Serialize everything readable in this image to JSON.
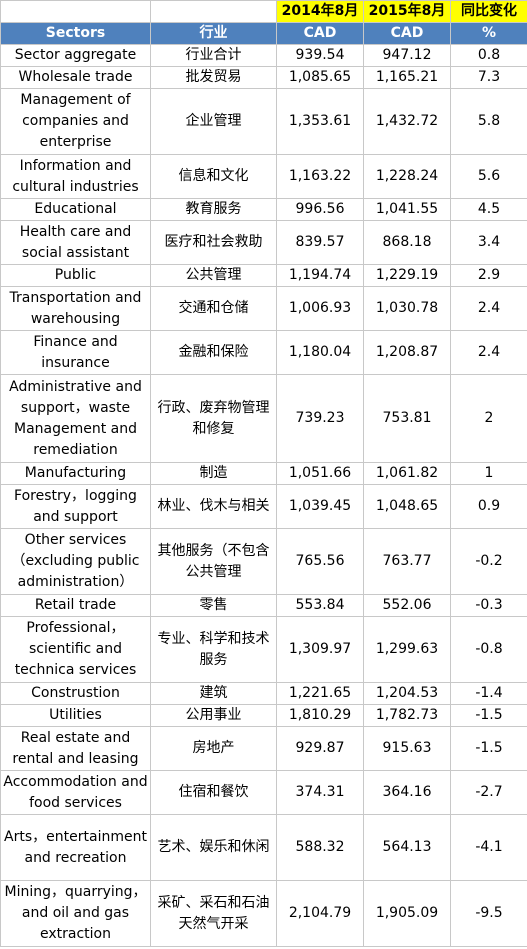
{
  "top_row": {
    "year1": "2014年8月",
    "year2": "2015年8月",
    "change": "同比变化"
  },
  "header": {
    "sectors": "Sectors",
    "industry_cn": "行业",
    "unit1": "CAD",
    "unit2": "CAD",
    "unit_pct": "%"
  },
  "rows": [
    {
      "en": "Sector aggregate",
      "cn": "行业合计",
      "v2014": "939.54",
      "v2015": "947.12",
      "pct": "0.8"
    },
    {
      "en": "Wholesale trade",
      "cn": "批发贸易",
      "v2014": "1,085.65",
      "v2015": "1,165.21",
      "pct": "7.3"
    },
    {
      "en": "Management of companies and enterprise",
      "cn": "企业管理",
      "v2014": "1,353.61",
      "v2015": "1,432.72",
      "pct": "5.8"
    },
    {
      "en": "Information and cultural industries",
      "cn": "信息和文化",
      "v2014": "1,163.22",
      "v2015": "1,228.24",
      "pct": "5.6"
    },
    {
      "en": "Educational",
      "cn": "教育服务",
      "v2014": "996.56",
      "v2015": "1,041.55",
      "pct": "4.5"
    },
    {
      "en": "Health care and social assistant",
      "cn": "医疗和社会救助",
      "v2014": "839.57",
      "v2015": "868.18",
      "pct": "3.4"
    },
    {
      "en": "Public",
      "cn": "公共管理",
      "v2014": "1,194.74",
      "v2015": "1,229.19",
      "pct": "2.9"
    },
    {
      "en": "Transportation and warehousing",
      "cn": "交通和仓储",
      "v2014": "1,006.93",
      "v2015": "1,030.78",
      "pct": "2.4"
    },
    {
      "en": "Finance and insurance",
      "cn": "金融和保险",
      "v2014": "1,180.04",
      "v2015": "1,208.87",
      "pct": "2.4"
    },
    {
      "en": "Administrative and support，waste Management and remediation",
      "cn": "行政、废弃物管理和修复",
      "v2014": "739.23",
      "v2015": "753.81",
      "pct": "2"
    },
    {
      "en": "Manufacturing",
      "cn": "制造",
      "v2014": "1,051.66",
      "v2015": "1,061.82",
      "pct": "1"
    },
    {
      "en": "Forestry，logging and support",
      "cn": "林业、伐木与相关",
      "v2014": "1,039.45",
      "v2015": "1,048.65",
      "pct": "0.9"
    },
    {
      "en": "Other services（excluding public administration）",
      "cn": "其他服务（不包含公共管理",
      "v2014": "765.56",
      "v2015": "763.77",
      "pct": "-0.2"
    },
    {
      "en": "Retail trade",
      "cn": "零售",
      "v2014": "553.84",
      "v2015": "552.06",
      "pct": "-0.3"
    },
    {
      "en": "Professional，scientific and technica services",
      "cn": "专业、科学和技术服务",
      "v2014": "1,309.97",
      "v2015": "1,299.63",
      "pct": "-0.8"
    },
    {
      "en": "Construstion",
      "cn": "建筑",
      "v2014": "1,221.65",
      "v2015": "1,204.53",
      "pct": "-1.4"
    },
    {
      "en": "Utilities",
      "cn": "公用事业",
      "v2014": "1,810.29",
      "v2015": "1,782.73",
      "pct": "-1.5"
    },
    {
      "en": "Real estate and rental and leasing",
      "cn": "房地产",
      "v2014": "929.87",
      "v2015": "915.63",
      "pct": "-1.5"
    },
    {
      "en": "Accommodation and food services",
      "cn": "住宿和餐饮",
      "v2014": "374.31",
      "v2015": "364.16",
      "pct": "-2.7"
    },
    {
      "en": "Arts，entertainment and recreation",
      "cn": "艺术、娱乐和休闲",
      "v2014": "588.32",
      "v2015": "564.13",
      "pct": "-4.1"
    },
    {
      "en": "Mining，quarrying，and oil and gas extraction",
      "cn": "采矿、采石和石油天然气开采",
      "v2014": "2,104.79",
      "v2015": "1,905.09",
      "pct": "-9.5"
    }
  ],
  "colors": {
    "header_blue": "#4f81bd",
    "year_yellow": "#ffff00",
    "grid": "#c8c8c8"
  }
}
